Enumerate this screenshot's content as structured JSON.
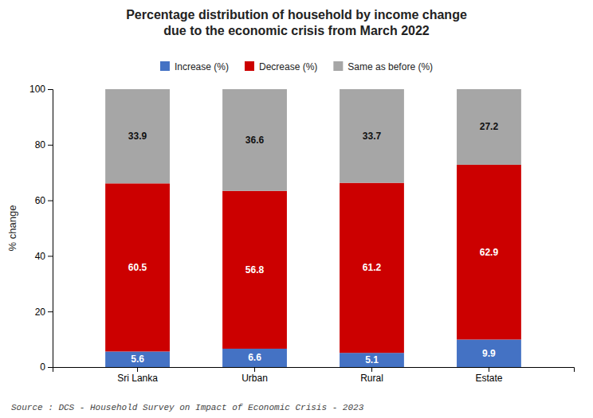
{
  "chart_data": {
    "type": "bar",
    "stacked": true,
    "title": "Percentage distribution of household by income change\ndue to the economic crisis from March 2022",
    "categories": [
      "Sri Lanka",
      "Urban",
      "Rural",
      "Estate"
    ],
    "series": [
      {
        "name": "Increase (%)",
        "color": "#4472c4",
        "values": [
          5.6,
          6.6,
          5.1,
          9.9
        ]
      },
      {
        "name": "Decrease (%)",
        "color": "#cc0000",
        "values": [
          60.5,
          56.8,
          61.2,
          62.9
        ]
      },
      {
        "name": "Same as before (%)",
        "color": "#a6a6a6",
        "values": [
          33.9,
          36.6,
          33.7,
          27.2
        ]
      }
    ],
    "ylabel": "% change",
    "ylim": [
      0,
      100
    ],
    "yticks": [
      0,
      20,
      40,
      60,
      80,
      100
    ],
    "grid": false,
    "legend": "top",
    "data_labels": true,
    "source": "Source : DCS - Household Survey on Impact of Economic Crisis -  2023"
  }
}
